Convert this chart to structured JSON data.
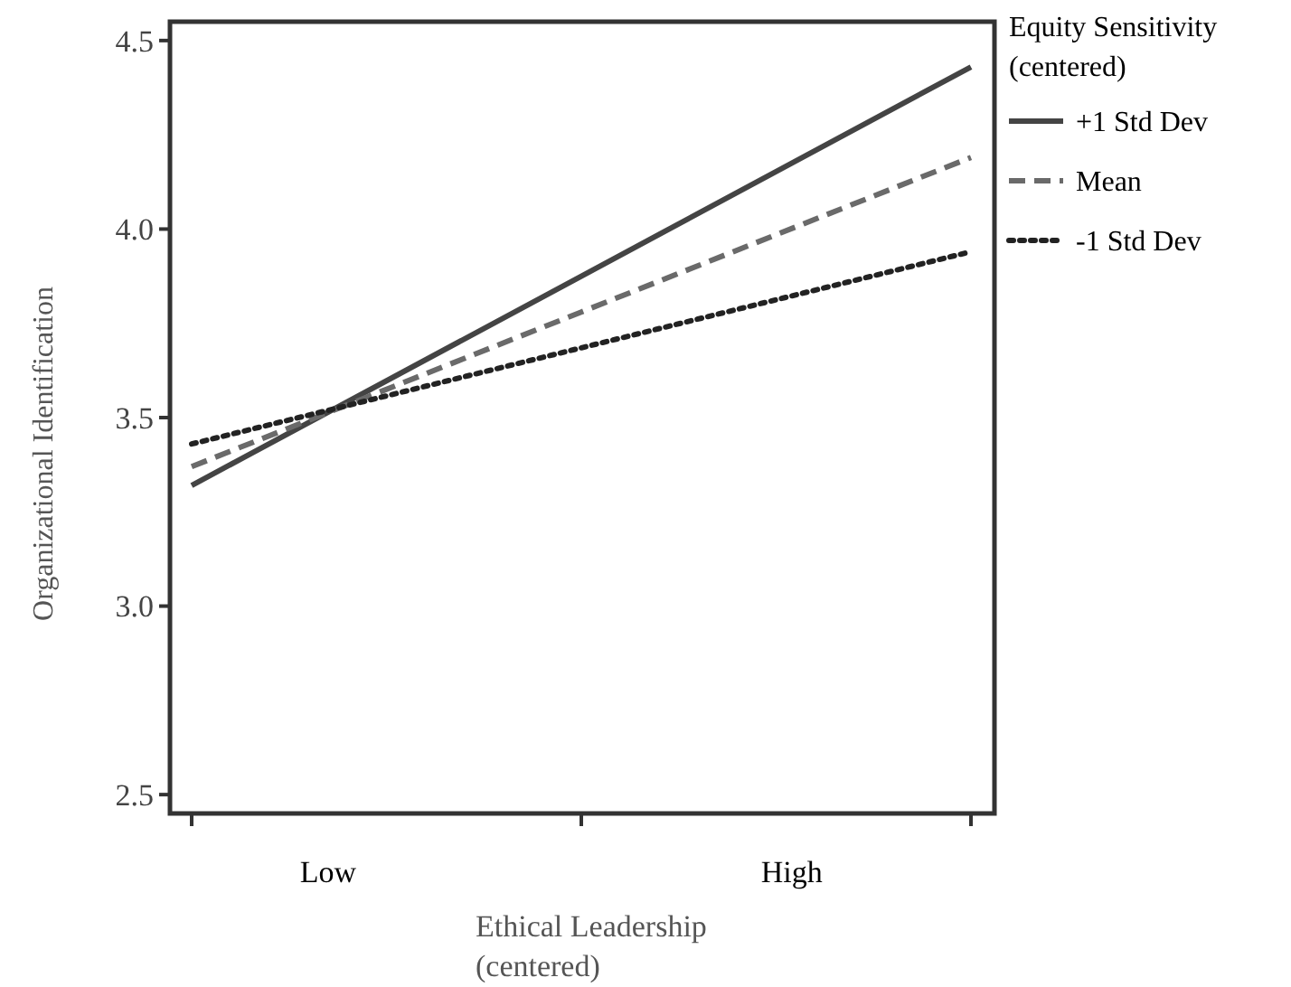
{
  "chart_data": {
    "type": "line",
    "ylabel": "Organizational Identification",
    "xlabel": "Ethical Leadership\n(centered)",
    "legend_title": "Equity Sensitivity\n(centered)",
    "legend": "right",
    "categories": [
      null,
      null,
      null
    ],
    "ylim": [
      2.45,
      4.55
    ],
    "yticks": [
      {
        "value": 2.5,
        "label": "2.5"
      },
      {
        "value": 3,
        "label": "3.0"
      },
      {
        "value": 3.5,
        "label": "3.5"
      },
      {
        "value": 4,
        "label": "4.0"
      },
      {
        "value": 4.5,
        "label": "4.5"
      }
    ],
    "grid": false,
    "annotations": [
      "Low",
      "High"
    ],
    "series": [
      {
        "name": "+1 Std Dev",
        "color": "#444444",
        "line_style": "solid",
        "values": [
          3.32,
          3.875,
          4.43
        ]
      },
      {
        "name": "Mean",
        "color": "#6a6a6a",
        "line_style": "dashed",
        "values": [
          3.37,
          3.78,
          4.19
        ]
      },
      {
        "name": "-1 Std Dev",
        "color": "#222222",
        "line_style": "dotted",
        "values": [
          3.43,
          3.685,
          3.94
        ]
      }
    ]
  }
}
